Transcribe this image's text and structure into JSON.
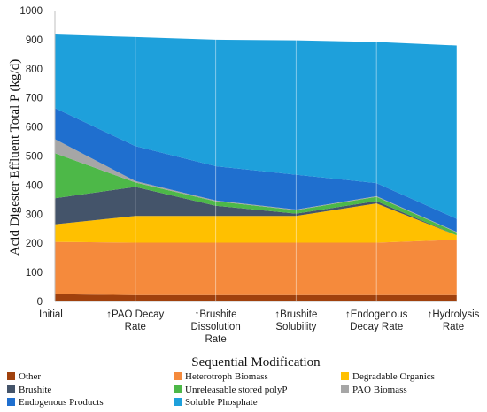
{
  "chart_data": {
    "type": "area",
    "stacked": true,
    "xlabel": "Sequential Modification",
    "ylabel": "Acid Digester Effluent Total P (kg/d)",
    "ylim": [
      0,
      1000
    ],
    "yticks": [
      0,
      100,
      200,
      300,
      400,
      500,
      600,
      700,
      800,
      900,
      1000
    ],
    "grid": "vertical",
    "legend_position": "bottom",
    "categories": [
      [
        "Initial"
      ],
      [
        "↑PAO Decay",
        "Rate"
      ],
      [
        "↑Brushite",
        "Dissolution",
        "Rate"
      ],
      [
        "↑Brushite",
        "Solubility"
      ],
      [
        "↑Endogenous",
        "Decay Rate"
      ],
      [
        "↑Hydrolysis",
        "Rate"
      ]
    ],
    "series": [
      {
        "name": "Other",
        "color": "#a0410d",
        "values": [
          25,
          22,
          22,
          22,
          22,
          22
        ]
      },
      {
        "name": "Heterotroph Biomass",
        "color": "#f58a3c",
        "values": [
          180,
          180,
          180,
          180,
          180,
          190
        ]
      },
      {
        "name": "Degradable Organics",
        "color": "#ffc000",
        "values": [
          60,
          92,
          92,
          92,
          135,
          15
        ]
      },
      {
        "name": "Brushite",
        "color": "#44546a",
        "values": [
          90,
          100,
          35,
          8,
          8,
          0
        ]
      },
      {
        "name": "Unreleasable stored polyP",
        "color": "#4db848",
        "values": [
          155,
          15,
          15,
          12,
          15,
          10
        ]
      },
      {
        "name": "PAO Biomass",
        "color": "#a6a6a6",
        "values": [
          48,
          5,
          3,
          2,
          2,
          2
        ]
      },
      {
        "name": "Endogenous Products",
        "color": "#1f6fcf",
        "values": [
          107,
          120,
          118,
          120,
          45,
          45
        ]
      },
      {
        "name": "Soluble Phosphate",
        "color": "#1ea0db",
        "values": [
          253,
          375,
          435,
          462,
          485,
          596
        ]
      }
    ]
  }
}
